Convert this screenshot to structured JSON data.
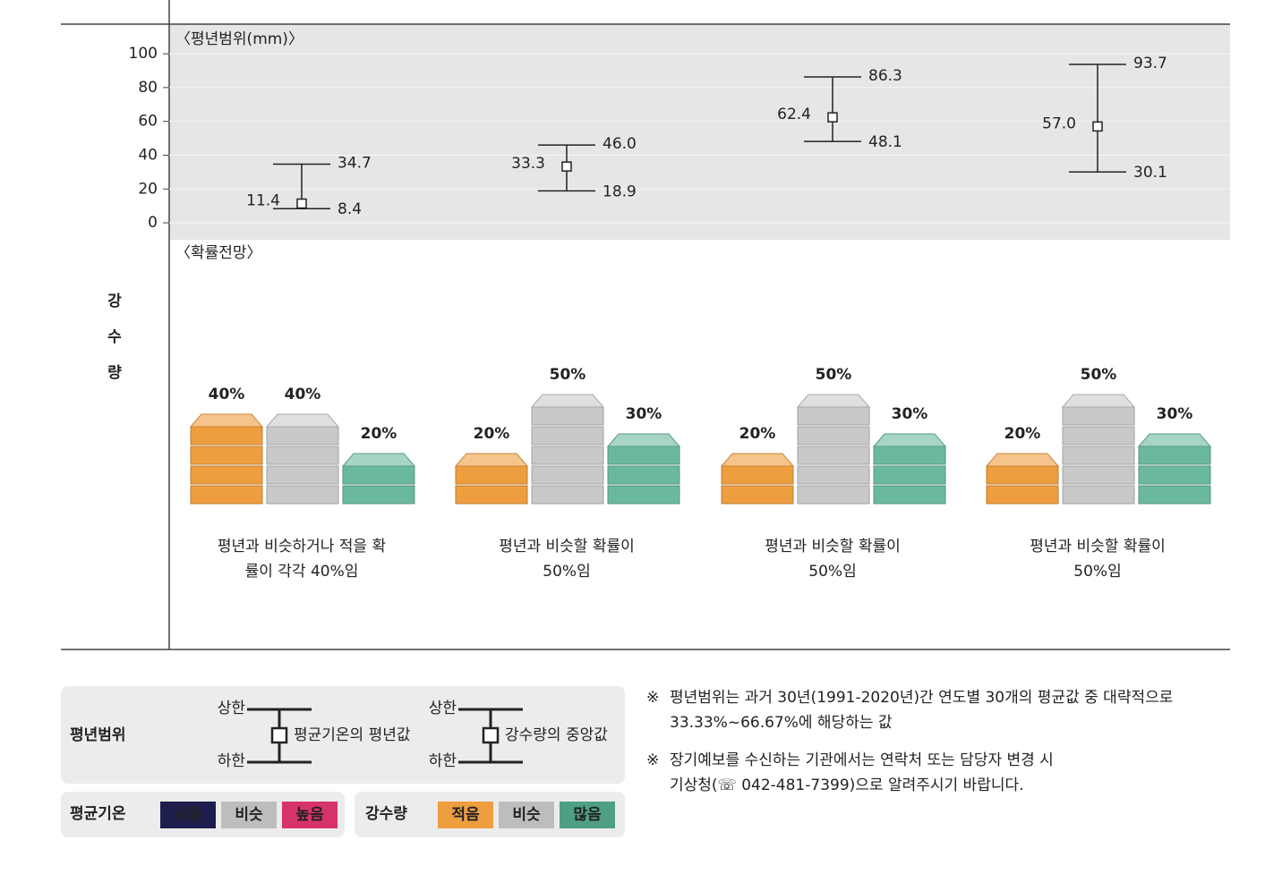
{
  "side_label": "강수량",
  "chart_data": {
    "type": "range",
    "title": "〈평년범위(mm)〉",
    "ylim": [
      -10,
      117.5
    ],
    "yticks": [
      0,
      20,
      40,
      60,
      80,
      100
    ],
    "grid": true,
    "upper": [
      34.7,
      46.0,
      86.3,
      93.7
    ],
    "upper_labels": [
      "34.7",
      "46.0",
      "86.3",
      "93.7"
    ],
    "center": [
      11.4,
      33.3,
      62.4,
      57.0
    ],
    "center_labels": [
      "11.4",
      "33.3",
      "62.4",
      "57.0"
    ],
    "lower": [
      8.4,
      18.9,
      48.1,
      30.1
    ],
    "lower_labels": [
      "8.4",
      "18.9",
      "48.1",
      "30.1"
    ]
  },
  "probability": {
    "title": "〈확률전망〉",
    "colors": [
      "#ee9d3f",
      "#c9c9c9",
      "#6bb8a0"
    ],
    "panels": [
      {
        "bars": [
          {
            "value": 40,
            "label": "40%"
          },
          {
            "value": 40,
            "label": "40%"
          },
          {
            "value": 20,
            "label": "20%"
          }
        ],
        "caption": [
          "평년과 비슷하거나 적을 확",
          "률이 각각 40%임"
        ]
      },
      {
        "bars": [
          {
            "value": 20,
            "label": "20%"
          },
          {
            "value": 50,
            "label": "50%"
          },
          {
            "value": 30,
            "label": "30%"
          }
        ],
        "caption": [
          "평년과 비슷할 확률이",
          "50%임"
        ]
      },
      {
        "bars": [
          {
            "value": 20,
            "label": "20%"
          },
          {
            "value": 50,
            "label": "50%"
          },
          {
            "value": 30,
            "label": "30%"
          }
        ],
        "caption": [
          "평년과 비슷할 확률이",
          "50%임"
        ]
      },
      {
        "bars": [
          {
            "value": 20,
            "label": "20%"
          },
          {
            "value": 50,
            "label": "50%"
          },
          {
            "value": 30,
            "label": "30%"
          }
        ],
        "caption": [
          "평년과 비슷할 확률이",
          "50%임"
        ]
      }
    ]
  },
  "legend": {
    "range_title": "평년범위",
    "range_items": [
      {
        "upper": "상한",
        "lower": "하한",
        "desc": "평균기온의 평년값"
      },
      {
        "upper": "상한",
        "lower": "하한",
        "desc": "강수량의 중앙값"
      }
    ],
    "groups": [
      {
        "title": "평균기온",
        "items": [
          {
            "label": "낮음",
            "color": "#1e1e4e"
          },
          {
            "label": "비슷",
            "color": "#bdbdbd"
          },
          {
            "label": "높음",
            "color": "#d7336b"
          }
        ]
      },
      {
        "title": "강수량",
        "items": [
          {
            "label": "적음",
            "color": "#ee9d3f"
          },
          {
            "label": "비슷",
            "color": "#bdbdbd"
          },
          {
            "label": "많음",
            "color": "#4f9f82"
          }
        ]
      }
    ]
  },
  "notes": [
    {
      "mark": "※",
      "lines": [
        "평년범위는 과거 30년(1991-2020년)간 연도별 30개의 평균값 중 대략적으로",
        "33.33%~66.67%에 해당하는 값"
      ]
    },
    {
      "mark": "※",
      "lines": [
        "장기예보를 수신하는 기관에서는 연락처 또는 담당자 변경 시",
        "기상청(☏ 042-481-7399)으로 알려주시기 바랍니다."
      ]
    }
  ]
}
